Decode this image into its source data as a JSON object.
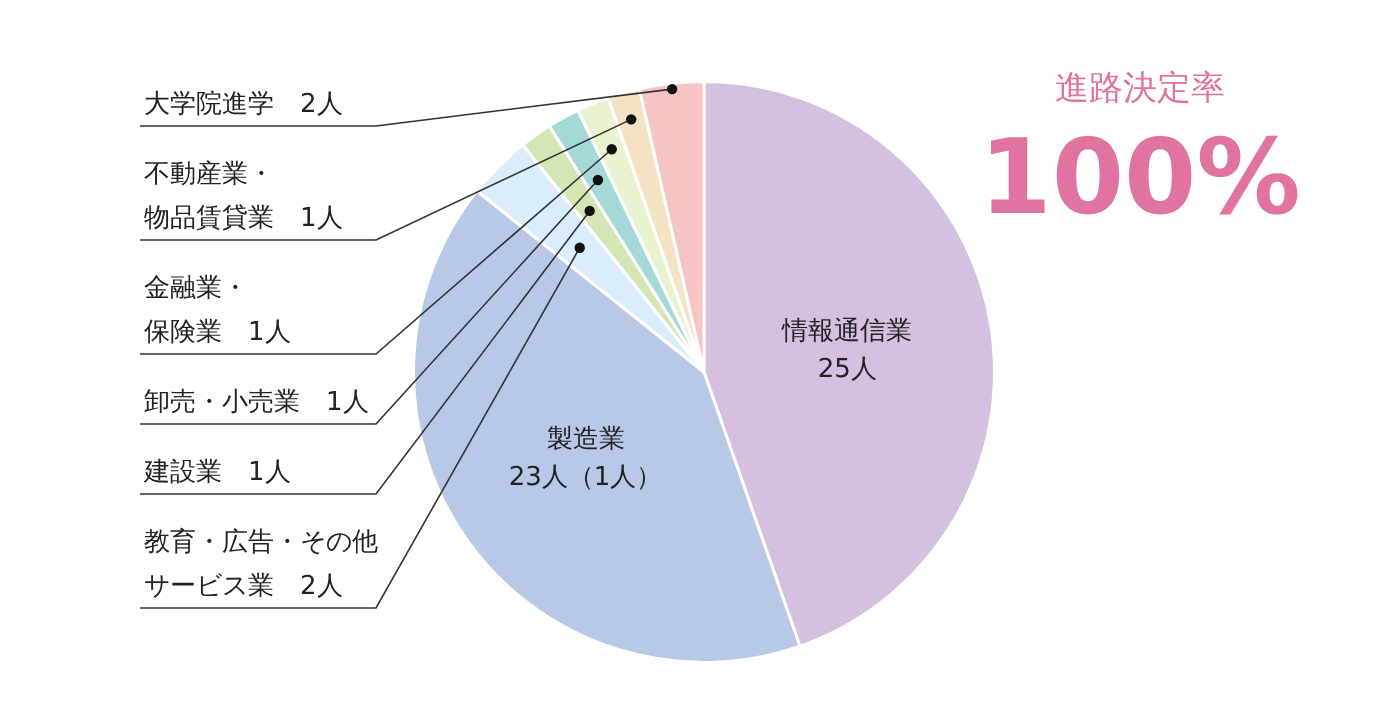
{
  "chart_data": {
    "type": "pie",
    "title": "進路決定率",
    "annotations": [
      "100%"
    ],
    "categories": [
      "情報通信業",
      "製造業",
      "教育・広告・その他サービス業",
      "建設業",
      "卸売・小売業",
      "金融業・保険業",
      "不動産業・物品賃貸業",
      "大学院進学"
    ],
    "values": [
      25,
      23,
      2,
      1,
      1,
      1,
      1,
      2
    ],
    "value_labels": [
      "25人",
      "23人（1人）",
      "2人",
      "1人",
      "1人",
      "1人",
      "1人",
      "2人"
    ],
    "colors": [
      "#d6c0e0",
      "#b8c9e8",
      "#d9eefa",
      "#d5e6b5",
      "#a4d9d8",
      "#e8f3d0",
      "#f3e3c3",
      "#f6c5c3"
    ],
    "legend": false
  }
}
